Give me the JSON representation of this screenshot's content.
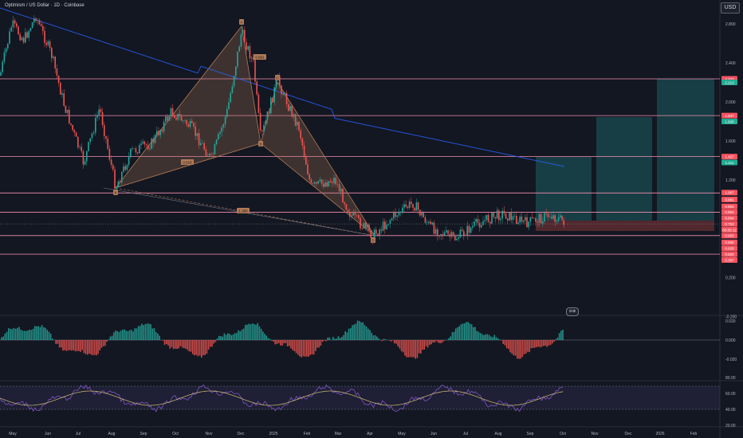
{
  "header": {
    "symbol_title": "Optimism / US Dollar · 1D · Coinbase",
    "currency_button": "USD"
  },
  "price_axis": {
    "ticks": [
      "2.800",
      "2.400",
      "2.000",
      "1.600",
      "1.200",
      "0.800",
      "0.400",
      "0.200",
      "-0.200"
    ],
    "tick_values": [
      2.8,
      2.4,
      2.0,
      1.6,
      1.2,
      0.8,
      0.4,
      0.2,
      -0.2
    ]
  },
  "time_axis": {
    "labels": [
      "May",
      "Jun",
      "Jul",
      "Aug",
      "Sep",
      "Oct",
      "Nov",
      "Dec",
      "2025",
      "Feb",
      "Mar",
      "Apr",
      "May",
      "Jun",
      "Jul",
      "Aug",
      "Sep",
      "Oct",
      "Nov",
      "Dec",
      "2026",
      "Feb"
    ]
  },
  "level_tags": [
    {
      "text": "2.237",
      "color": "#f7525f",
      "price": 2.237
    },
    {
      "text": "2.213",
      "color": "#22ab94",
      "price": 2.2
    },
    {
      "text": "1.847",
      "color": "#f7525f",
      "price": 1.86
    },
    {
      "text": "1.828",
      "color": "#22ab94",
      "price": 1.8
    },
    {
      "text": "1.427",
      "color": "#f7525f",
      "price": 1.44
    },
    {
      "text": "1.411",
      "color": "#22ab94",
      "price": 1.38
    },
    {
      "text": "1.067",
      "color": "#f7525f",
      "price": 1.07
    },
    {
      "text": "0.881",
      "color": "#f7525f",
      "price": 1.0
    },
    {
      "text": "0.804",
      "color": "#f7525f",
      "price": 0.93
    },
    {
      "text": "0.804",
      "color": "#f7525f",
      "price": 0.87
    },
    {
      "text": "0.804",
      "color": "#f7525f",
      "price": 0.81
    },
    {
      "text": "0.753",
      "color": "#f7525f",
      "price": 0.75
    },
    {
      "text": "06:05:11",
      "color": "#f7525f",
      "price": 0.69
    },
    {
      "text": "0.603",
      "color": "#f7525f",
      "price": 0.63
    },
    {
      "text": "0.600",
      "color": "#f7525f",
      "price": 0.56
    },
    {
      "text": "0.628",
      "color": "#f7525f",
      "price": 0.5
    },
    {
      "text": "0.600",
      "color": "#f7525f",
      "price": 0.44
    },
    {
      "text": "0.387",
      "color": "#f7525f",
      "price": 0.38
    }
  ],
  "pattern_labels": [
    {
      "text": "X",
      "t": "Aug-02",
      "price": 1.12
    },
    {
      "text": "A",
      "t": "Dec-03",
      "price": 2.92
    },
    {
      "text": "B",
      "t": "Jan-04",
      "price": 1.49
    },
    {
      "text": "C",
      "t": "Jan-14",
      "price": 2.27
    },
    {
      "text": "D",
      "t": "Apr-06",
      "price": 0.5
    }
  ],
  "ratio_labels": [
    "0.618",
    "0.891",
    "1.380"
  ],
  "indicators": {
    "macd_ticks": [
      "0.020",
      "0.000",
      "-0.020"
    ],
    "rsi_ticks": [
      "80.00",
      "60.00",
      "40.00",
      "20.00"
    ],
    "mini_button": "⊖⊕"
  }
}
